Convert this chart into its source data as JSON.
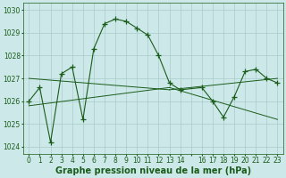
{
  "title": "Graphe pression niveau de la mer (hPa)",
  "bg_color": "#cce8e8",
  "grid_color": "#aacccc",
  "line_color": "#1a5c1a",
  "marker_color": "#1a5c1a",
  "xlim": [
    -0.5,
    23.5
  ],
  "ylim": [
    1023.7,
    1030.3
  ],
  "yticks": [
    1024,
    1025,
    1026,
    1027,
    1028,
    1029,
    1030
  ],
  "xtick_labels": [
    "0",
    "1",
    "2",
    "3",
    "4",
    "5",
    "6",
    "7",
    "8",
    "9",
    "10",
    "11",
    "12",
    "13",
    "14",
    "",
    "16",
    "17",
    "18",
    "19",
    "20",
    "21",
    "22",
    "23"
  ],
  "x": [
    0,
    1,
    2,
    3,
    4,
    5,
    6,
    7,
    8,
    9,
    10,
    11,
    12,
    13,
    14,
    16,
    17,
    18,
    19,
    20,
    21,
    22,
    23
  ],
  "y_main": [
    1026.0,
    1026.6,
    1024.2,
    1027.2,
    1027.5,
    1025.2,
    1028.3,
    1029.4,
    1029.6,
    1029.5,
    1029.2,
    1028.9,
    1028.0,
    1026.8,
    1026.5,
    1026.6,
    1026.0,
    1025.3,
    1026.2,
    1027.3,
    1027.4,
    1027.0,
    1026.8
  ],
  "trend1_x": [
    0,
    13
  ],
  "trend1_y": [
    1027.0,
    1026.5
  ],
  "trend2_x": [
    0,
    13
  ],
  "trend2_y": [
    1025.8,
    1026.6
  ],
  "trend3_x": [
    13,
    23
  ],
  "trend3_y": [
    1026.6,
    1025.2
  ],
  "trend4_x": [
    13,
    23
  ],
  "trend4_y": [
    1026.5,
    1027.0
  ],
  "tick_fontsize": 5.5,
  "title_fontsize": 7.0,
  "figsize": [
    3.2,
    2.0
  ],
  "dpi": 100
}
